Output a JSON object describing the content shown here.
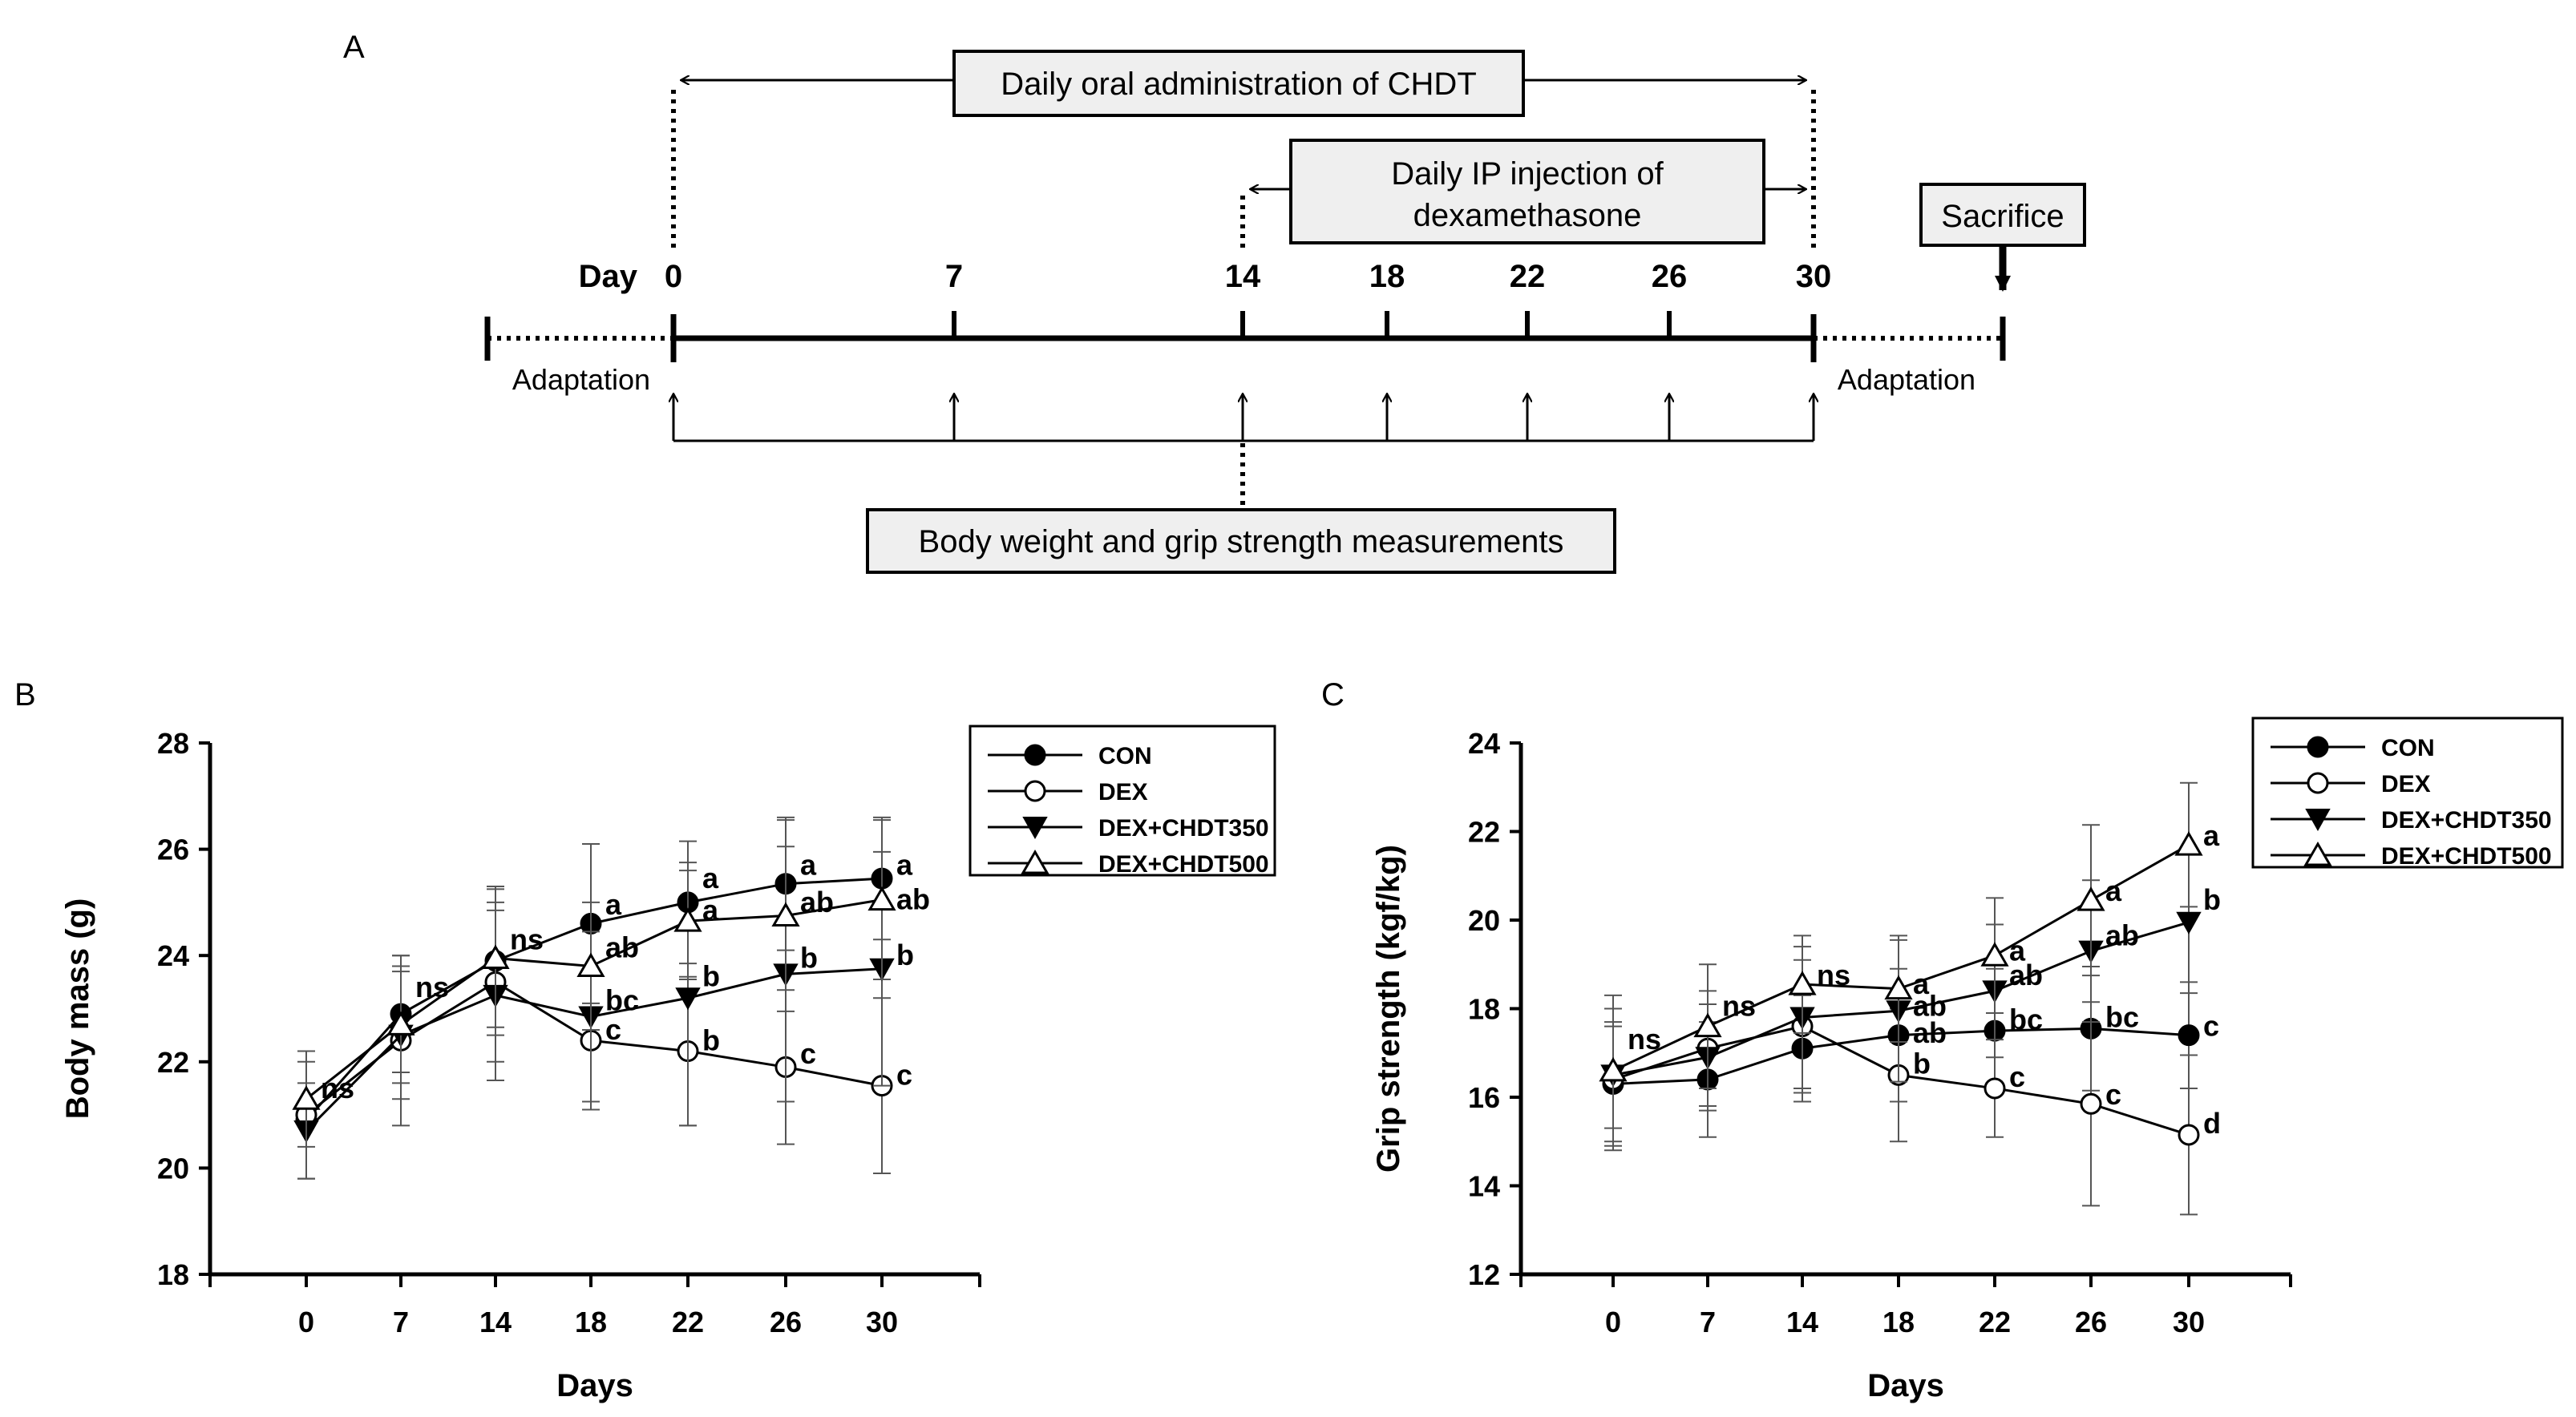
{
  "timeline": {
    "panel_label": "A",
    "oral_box": "Daily oral administration of CHDT",
    "ip_box_line1": "Daily IP injection of",
    "ip_box_line2": "dexamethasone",
    "sacrifice_box": "Sacrifice",
    "day_label": "Day",
    "days": [
      "0",
      "7",
      "14",
      "18",
      "22",
      "26",
      "30"
    ],
    "adaptation_left": "Adaptation",
    "adaptation_right": "Adaptation",
    "measure_box": "Body weight and grip strength measurements"
  },
  "chart_data": [
    {
      "type": "line",
      "panel_label": "B",
      "title": "",
      "xlabel": "Days",
      "ylabel": "Body mass (g)",
      "categories": [
        "0",
        "7",
        "14",
        "18",
        "22",
        "26",
        "30"
      ],
      "ylim": [
        18,
        28
      ],
      "yticks": [
        "18",
        "20",
        "22",
        "24",
        "26",
        "28"
      ],
      "legend_position": "top-right",
      "series": [
        {
          "name": "CON",
          "marker": "filled-circle",
          "values": [
            20.9,
            22.9,
            23.9,
            24.6,
            25.0,
            25.35,
            25.45
          ],
          "errors": [
            1.1,
            1.1,
            1.4,
            1.5,
            1.15,
            1.25,
            1.15
          ]
        },
        {
          "name": "DEX",
          "marker": "open-circle",
          "values": [
            21.0,
            22.4,
            23.5,
            22.4,
            22.2,
            21.9,
            21.55
          ],
          "errors": [
            1.2,
            1.6,
            1.5,
            1.3,
            1.4,
            1.45,
            1.65
          ]
        },
        {
          "name": "DEX+CHDT350",
          "marker": "filled-triangle-down",
          "values": [
            20.7,
            22.5,
            23.25,
            22.85,
            23.2,
            23.65,
            23.75
          ],
          "errors": [
            0.9,
            1.2,
            1.6,
            1.6,
            2.4,
            2.4,
            2.2
          ]
        },
        {
          "name": "DEX+CHDT500",
          "marker": "open-triangle-up",
          "values": [
            21.3,
            22.7,
            23.95,
            23.8,
            24.65,
            24.75,
            25.05
          ],
          "errors": [
            0.9,
            1.1,
            1.3,
            1.2,
            1.1,
            1.8,
            1.5
          ]
        }
      ],
      "annotations": [
        {
          "x": "0",
          "y": 21.5,
          "text": "ns"
        },
        {
          "x": "7",
          "y": 23.4,
          "text": "ns"
        },
        {
          "x": "14",
          "y": 24.3,
          "text": "ns"
        },
        {
          "x": "18",
          "y": 24.95,
          "text": "a"
        },
        {
          "x": "18",
          "y": 24.15,
          "text": "ab"
        },
        {
          "x": "18",
          "y": 23.15,
          "text": "bc"
        },
        {
          "x": "18",
          "y": 22.6,
          "text": "c"
        },
        {
          "x": "22",
          "y": 25.45,
          "text": "a"
        },
        {
          "x": "22",
          "y": 24.85,
          "text": "a"
        },
        {
          "x": "22",
          "y": 23.6,
          "text": "b"
        },
        {
          "x": "22",
          "y": 22.4,
          "text": "b"
        },
        {
          "x": "26",
          "y": 25.7,
          "text": "a"
        },
        {
          "x": "26",
          "y": 25.0,
          "text": "ab"
        },
        {
          "x": "26",
          "y": 23.95,
          "text": "b"
        },
        {
          "x": "26",
          "y": 22.15,
          "text": "c"
        },
        {
          "x": "30",
          "y": 25.7,
          "text": "a"
        },
        {
          "x": "30",
          "y": 25.05,
          "text": "ab"
        },
        {
          "x": "30",
          "y": 24.0,
          "text": "b"
        },
        {
          "x": "30",
          "y": 21.75,
          "text": "c"
        }
      ]
    },
    {
      "type": "line",
      "panel_label": "C",
      "title": "",
      "xlabel": "Days",
      "ylabel": "Grip strength (kgf/kg)",
      "categories": [
        "0",
        "7",
        "14",
        "18",
        "22",
        "26",
        "30"
      ],
      "ylim": [
        12,
        24
      ],
      "yticks": [
        "12",
        "14",
        "16",
        "18",
        "20",
        "22",
        "24"
      ],
      "legend_position": "top-right",
      "series": [
        {
          "name": "CON",
          "marker": "filled-circle",
          "values": [
            16.3,
            16.4,
            17.1,
            17.4,
            17.5,
            17.55,
            17.4
          ],
          "errors": [
            1.3,
            1.3,
            1.2,
            1.5,
            1.4,
            1.4,
            1.2
          ]
        },
        {
          "name": "DEX",
          "marker": "open-circle",
          "values": [
            16.4,
            17.1,
            17.6,
            16.5,
            16.2,
            15.85,
            15.15
          ],
          "errors": [
            1.6,
            1.3,
            1.5,
            1.5,
            1.1,
            2.3,
            1.8
          ]
        },
        {
          "name": "DEX+CHDT350",
          "marker": "filled-triangle-down",
          "values": [
            16.5,
            16.9,
            17.8,
            17.95,
            18.4,
            19.3,
            19.95
          ],
          "errors": [
            1.2,
            1.2,
            1.6,
            1.6,
            1.5,
            1.6,
            1.6
          ]
        },
        {
          "name": "DEX+CHDT500",
          "marker": "open-triangle-up",
          "values": [
            16.6,
            17.6,
            18.55,
            18.45,
            19.2,
            20.45,
            21.7
          ],
          "errors": [
            1.7,
            1.4,
            1.1,
            1.2,
            1.3,
            1.7,
            1.4
          ]
        }
      ],
      "annotations": [
        {
          "x": "0",
          "y": 17.3,
          "text": "ns"
        },
        {
          "x": "7",
          "y": 18.05,
          "text": "ns"
        },
        {
          "x": "14",
          "y": 18.75,
          "text": "ns"
        },
        {
          "x": "18",
          "y": 18.55,
          "text": "a"
        },
        {
          "x": "18",
          "y": 18.05,
          "text": "ab"
        },
        {
          "x": "18",
          "y": 17.45,
          "text": "ab"
        },
        {
          "x": "18",
          "y": 16.75,
          "text": "b"
        },
        {
          "x": "22",
          "y": 19.3,
          "text": "a"
        },
        {
          "x": "22",
          "y": 18.75,
          "text": "ab"
        },
        {
          "x": "22",
          "y": 17.75,
          "text": "bc"
        },
        {
          "x": "22",
          "y": 16.45,
          "text": "c"
        },
        {
          "x": "26",
          "y": 20.65,
          "text": "a"
        },
        {
          "x": "26",
          "y": 19.65,
          "text": "ab"
        },
        {
          "x": "26",
          "y": 17.8,
          "text": "bc"
        },
        {
          "x": "26",
          "y": 16.05,
          "text": "c"
        },
        {
          "x": "30",
          "y": 21.9,
          "text": "a"
        },
        {
          "x": "30",
          "y": 20.45,
          "text": "b"
        },
        {
          "x": "30",
          "y": 17.6,
          "text": "c"
        },
        {
          "x": "30",
          "y": 15.4,
          "text": "d"
        }
      ]
    }
  ]
}
